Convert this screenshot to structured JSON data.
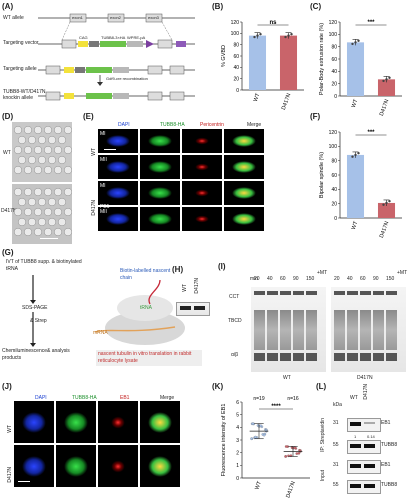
{
  "panels": {
    "A": "(A)",
    "B": "(B)",
    "C": "(C)",
    "D": "(D)",
    "E": "(E)",
    "F": "(F)",
    "G": "(G)",
    "H": "(H)",
    "I": "(I)",
    "J": "(J)",
    "K": "(K)",
    "L": "(L)"
  },
  "panelA": {
    "rows": [
      "WT allele",
      "Targeting vector",
      "Targeting allele",
      "TUBB8-WT/D417N knockin allele"
    ],
    "exon1": "exon1",
    "exon2": "exon2",
    "exon3": "exon3",
    "exon4": "exon4",
    "cag": "CAG",
    "stop": "STOP",
    "tubb8": "TUBB8-3×HA",
    "wpre": "WPRE-pA",
    "neo": "neo",
    "recomb": "Gdf9-cre recombination"
  },
  "panelD": {
    "wt": "WT",
    "mut": "D417N"
  },
  "panelE": {
    "headers": [
      "DAPI",
      "TUBB8-HA",
      "Pericentrin",
      "Merge"
    ],
    "rows": [
      "WT",
      "D417N"
    ],
    "stages": [
      "MI",
      "MII",
      "MI",
      "MII"
    ],
    "pb": "PB1"
  },
  "panelG": {
    "step1": "IVT of TUBB8 supp. & biotinylated tRNA",
    "step2": "SDS-PAGE",
    "step3": "& Strep",
    "step4": "Chemiluminescence& analysis products",
    "nascent": "Biotin-labelled nascent chain",
    "trna": "tRNA",
    "mrna": "mRNA",
    "caption": "nascent tubulin in vitro translation in rabbit reticulocyte lysate"
  },
  "panelH": {
    "lanes": [
      "WT",
      "D417N"
    ]
  },
  "panelI": {
    "min": "min",
    "times": [
      "20",
      "40",
      "60",
      "90",
      "150"
    ],
    "mt": "+MT",
    "bands": [
      "CCT",
      "TBCD",
      "α/β"
    ],
    "genotypes": [
      "WT",
      "D417N"
    ]
  },
  "panelJ": {
    "headers": [
      "DAPI",
      "TUBB8-HA",
      "EB1",
      "Merge"
    ],
    "rows": [
      "WT",
      "D417N"
    ]
  },
  "panelL": {
    "lanes": [
      "WT",
      "D417N"
    ],
    "kda": "kDa",
    "markers": [
      "31",
      "55",
      "31",
      "55"
    ],
    "bands": [
      "EB1",
      "TUBB8",
      "EB1",
      "TUBB8"
    ],
    "quant": [
      "1",
      "0.14"
    ],
    "ip": "IP: Streptavidin",
    "input": "Input"
  },
  "chart_data": [
    {
      "type": "bar",
      "panel": "B",
      "categories": [
        "WT",
        "D417N"
      ],
      "values": [
        96,
        96
      ],
      "ylabel": "% GVBD",
      "ylim": [
        0,
        120
      ],
      "yticks": [
        0,
        20,
        40,
        60,
        80,
        100,
        120
      ],
      "colors": [
        "#a6c1e8",
        "#c9646a"
      ],
      "significance": "ns"
    },
    {
      "type": "bar",
      "panel": "C",
      "categories": [
        "WT",
        "D417N"
      ],
      "values": [
        87,
        27
      ],
      "ylabel": "Polar-Body extrusion rate (%)",
      "ylim": [
        0,
        120
      ],
      "yticks": [
        0,
        20,
        40,
        60,
        80,
        100,
        120
      ],
      "colors": [
        "#a6c1e8",
        "#c9646a"
      ],
      "significance": "***"
    },
    {
      "type": "bar",
      "panel": "F",
      "categories": [
        "WT",
        "D417N"
      ],
      "values": [
        88,
        21
      ],
      "ylabel": "Bipolar spindle (%)",
      "ylim": [
        0,
        120
      ],
      "yticks": [
        0,
        20,
        40,
        60,
        80,
        100,
        120
      ],
      "colors": [
        "#a6c1e8",
        "#c9646a"
      ],
      "significance": "***"
    },
    {
      "type": "scatter",
      "panel": "K",
      "categories": [
        "WT",
        "D417N"
      ],
      "values": [
        3.7,
        2.1
      ],
      "ylabel": "Fluorescence intensity of EB1",
      "ylim": [
        0,
        6
      ],
      "yticks": [
        0,
        1,
        2,
        3,
        4,
        5,
        6
      ],
      "n": [
        "n=19",
        "n=16"
      ],
      "colors": [
        "#a6c1e8",
        "#c9646a"
      ],
      "significance": "****"
    }
  ]
}
